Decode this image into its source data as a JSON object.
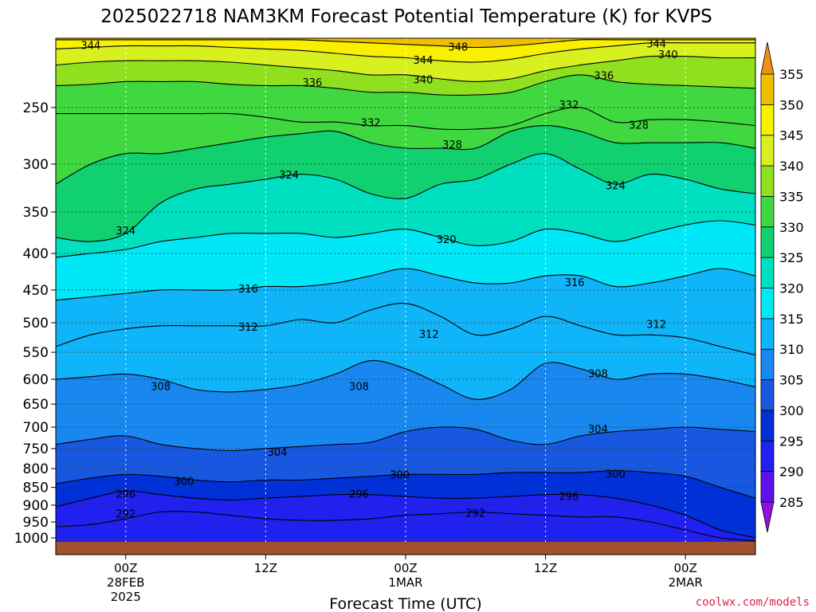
{
  "chart_data": {
    "type": "contour",
    "title": "2025022718 NAM3KM Forecast Potential Temperature (K) for KVPS",
    "xlabel": "Forecast Time (UTC)",
    "ylabel": "",
    "credit": "coolwx.com/models",
    "y_scale": "log",
    "y_inverted": true,
    "y_range_hPa": [
      1013,
      200
    ],
    "y_ticks": [
      250,
      300,
      350,
      400,
      450,
      500,
      550,
      600,
      650,
      700,
      750,
      800,
      850,
      900,
      950,
      1000
    ],
    "x_range_hours": [
      18,
      78
    ],
    "x_ticks": [
      {
        "hour": 24,
        "lines": [
          "00Z",
          "28FEB",
          "2025"
        ]
      },
      {
        "hour": 36,
        "lines": [
          "12Z"
        ]
      },
      {
        "hour": 48,
        "lines": [
          "00Z",
          "1MAR"
        ]
      },
      {
        "hour": 60,
        "lines": [
          "12Z"
        ]
      },
      {
        "hour": 72,
        "lines": [
          "00Z",
          "2MAR"
        ]
      }
    ],
    "colorbar": {
      "unit": "K",
      "levels": [
        285,
        290,
        295,
        300,
        305,
        310,
        315,
        320,
        325,
        330,
        335,
        340,
        345,
        350,
        355
      ],
      "colors": [
        "#9010e0",
        "#6010e8",
        "#2020f0",
        "#0030d8",
        "#1858e0",
        "#1888f0",
        "#10b4f8",
        "#00e8f8",
        "#00e0c0",
        "#10d070",
        "#40d840",
        "#90e020",
        "#d8f020",
        "#f8f000",
        "#f0c000",
        "#f09010"
      ]
    },
    "ground": {
      "color": "#a0522d"
    },
    "contour_interval": 4,
    "hours": [
      18,
      21,
      24,
      27,
      30,
      33,
      36,
      39,
      42,
      45,
      48,
      51,
      54,
      57,
      60,
      63,
      66,
      69,
      72,
      75,
      78
    ],
    "isentropes": [
      {
        "theta": 292,
        "p": [
          965,
          958,
          940,
          920,
          920,
          930,
          940,
          945,
          945,
          940,
          930,
          925,
          920,
          925,
          930,
          935,
          935,
          950,
          975,
          1000,
          1010
        ]
      },
      {
        "theta": 296,
        "p": [
          905,
          880,
          860,
          870,
          880,
          885,
          880,
          875,
          870,
          870,
          875,
          880,
          880,
          875,
          870,
          870,
          880,
          900,
          930,
          975,
          1000
        ]
      },
      {
        "theta": 300,
        "p": [
          840,
          825,
          815,
          820,
          830,
          835,
          830,
          830,
          825,
          820,
          815,
          815,
          815,
          810,
          810,
          810,
          805,
          810,
          820,
          850,
          880
        ]
      },
      {
        "theta": 304,
        "p": [
          740,
          728,
          720,
          740,
          750,
          755,
          750,
          745,
          740,
          735,
          710,
          700,
          705,
          730,
          740,
          720,
          710,
          705,
          700,
          705,
          710
        ]
      },
      {
        "theta": 308,
        "p": [
          600,
          595,
          590,
          600,
          620,
          625,
          620,
          610,
          590,
          565,
          580,
          610,
          640,
          620,
          570,
          580,
          600,
          590,
          590,
          600,
          615
        ]
      },
      {
        "theta": 312,
        "p": [
          540,
          520,
          510,
          505,
          505,
          505,
          505,
          495,
          500,
          480,
          470,
          490,
          520,
          510,
          490,
          505,
          520,
          520,
          525,
          540,
          555
        ]
      },
      {
        "theta": 316,
        "p": [
          465,
          460,
          455,
          450,
          450,
          450,
          445,
          445,
          440,
          430,
          420,
          430,
          440,
          440,
          430,
          430,
          445,
          440,
          430,
          420,
          430
        ]
      },
      {
        "theta": 320,
        "p": [
          405,
          400,
          395,
          385,
          380,
          375,
          375,
          375,
          380,
          375,
          370,
          380,
          390,
          385,
          370,
          375,
          385,
          375,
          365,
          360,
          365
        ]
      },
      {
        "theta": 324,
        "p": [
          380,
          385,
          375,
          340,
          325,
          320,
          315,
          310,
          315,
          330,
          335,
          320,
          315,
          300,
          290,
          305,
          320,
          310,
          315,
          325,
          330
        ]
      },
      {
        "theta": 328,
        "p": [
          320,
          300,
          290,
          290,
          285,
          280,
          275,
          272,
          270,
          280,
          285,
          285,
          285,
          270,
          265,
          270,
          280,
          280,
          280,
          280,
          285
        ]
      },
      {
        "theta": 332,
        "p": [
          255,
          255,
          255,
          255,
          255,
          255,
          258,
          262,
          262,
          265,
          265,
          268,
          268,
          265,
          255,
          250,
          262,
          260,
          260,
          262,
          265
        ]
      },
      {
        "theta": 336,
        "p": [
          233,
          232,
          230,
          230,
          230,
          232,
          233,
          233,
          235,
          238,
          238,
          240,
          240,
          238,
          230,
          225,
          230,
          232,
          233,
          234,
          235
        ]
      },
      {
        "theta": 340,
        "p": [
          218,
          216,
          215,
          215,
          215,
          216,
          218,
          220,
          222,
          225,
          225,
          228,
          230,
          228,
          222,
          218,
          215,
          212,
          212,
          213,
          213
        ]
      },
      {
        "theta": 344,
        "p": [
          207,
          206,
          205,
          205,
          205,
          206,
          207,
          208,
          210,
          212,
          213,
          215,
          216,
          214,
          210,
          207,
          205,
          203,
          203,
          203,
          203
        ]
      },
      {
        "theta": 348,
        "p": [
          201,
          201,
          201,
          201,
          201,
          201,
          201,
          201,
          202,
          203,
          204,
          205,
          206,
          205,
          203,
          201,
          201,
          201,
          201,
          201,
          201
        ]
      }
    ],
    "contour_labels": [
      {
        "text": "344",
        "hour": 21.0,
        "p": 205
      },
      {
        "text": "348",
        "hour": 52.5,
        "p": 206
      },
      {
        "text": "344",
        "hour": 69.5,
        "p": 204
      },
      {
        "text": "340",
        "hour": 70.5,
        "p": 211
      },
      {
        "text": "344",
        "hour": 49.5,
        "p": 215
      },
      {
        "text": "340",
        "hour": 49.5,
        "p": 229
      },
      {
        "text": "336",
        "hour": 40.0,
        "p": 231
      },
      {
        "text": "336",
        "hour": 65.0,
        "p": 226
      },
      {
        "text": "332",
        "hour": 62.0,
        "p": 248
      },
      {
        "text": "332",
        "hour": 45.0,
        "p": 263
      },
      {
        "text": "328",
        "hour": 68.0,
        "p": 265
      },
      {
        "text": "328",
        "hour": 52.0,
        "p": 282
      },
      {
        "text": "324",
        "hour": 38.0,
        "p": 311
      },
      {
        "text": "324",
        "hour": 66.0,
        "p": 322
      },
      {
        "text": "324",
        "hour": 24.0,
        "p": 372
      },
      {
        "text": "320",
        "hour": 51.5,
        "p": 383
      },
      {
        "text": "316",
        "hour": 34.5,
        "p": 449
      },
      {
        "text": "316",
        "hour": 62.5,
        "p": 440
      },
      {
        "text": "312",
        "hour": 34.5,
        "p": 508
      },
      {
        "text": "312",
        "hour": 50.0,
        "p": 520
      },
      {
        "text": "312",
        "hour": 69.5,
        "p": 503
      },
      {
        "text": "308",
        "hour": 27.0,
        "p": 615
      },
      {
        "text": "308",
        "hour": 44.0,
        "p": 615
      },
      {
        "text": "308",
        "hour": 64.5,
        "p": 590
      },
      {
        "text": "304",
        "hour": 64.5,
        "p": 705
      },
      {
        "text": "304",
        "hour": 37.0,
        "p": 760
      },
      {
        "text": "300",
        "hour": 29.0,
        "p": 835
      },
      {
        "text": "300",
        "hour": 47.5,
        "p": 818
      },
      {
        "text": "300",
        "hour": 66.0,
        "p": 815
      },
      {
        "text": "296",
        "hour": 24.0,
        "p": 870
      },
      {
        "text": "296",
        "hour": 44.0,
        "p": 870
      },
      {
        "text": "296",
        "hour": 62.0,
        "p": 876
      },
      {
        "text": "292",
        "hour": 24.0,
        "p": 927
      },
      {
        "text": "292",
        "hour": 54.0,
        "p": 925
      }
    ]
  }
}
